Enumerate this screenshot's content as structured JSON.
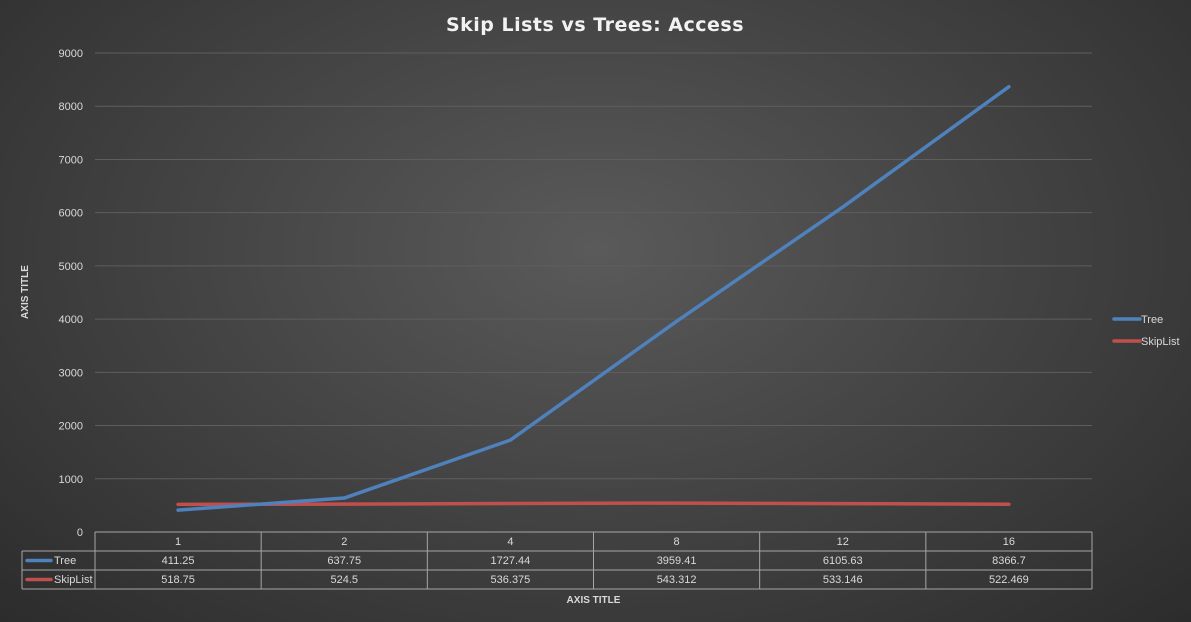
{
  "chart_data": {
    "type": "line",
    "title": "Skip Lists vs Trees: Access",
    "xlabel": "AXIS TITLE",
    "ylabel": "AXIS TITLE",
    "categories": [
      "1",
      "2",
      "4",
      "8",
      "12",
      "16"
    ],
    "ylim": [
      0,
      9000
    ],
    "yticks": [
      0,
      1000,
      2000,
      3000,
      4000,
      5000,
      6000,
      7000,
      8000,
      9000
    ],
    "grid": true,
    "legend_position": "right",
    "data_table": true,
    "series": [
      {
        "name": "Tree",
        "color": "#4f81bd",
        "values": [
          411.25,
          637.75,
          1727.44,
          3959.41,
          6105.63,
          8366.7
        ],
        "labels": [
          "411.25",
          "637.75",
          "1727.44",
          "3959.41",
          "6105.63",
          "8366.7"
        ]
      },
      {
        "name": "SkipList",
        "color": "#c0504d",
        "values": [
          518.75,
          524.5,
          536.375,
          543.312,
          533.146,
          522.469
        ],
        "labels": [
          "518.75",
          "524.5",
          "536.375",
          "543.312",
          "533.146",
          "522.469"
        ]
      }
    ]
  }
}
